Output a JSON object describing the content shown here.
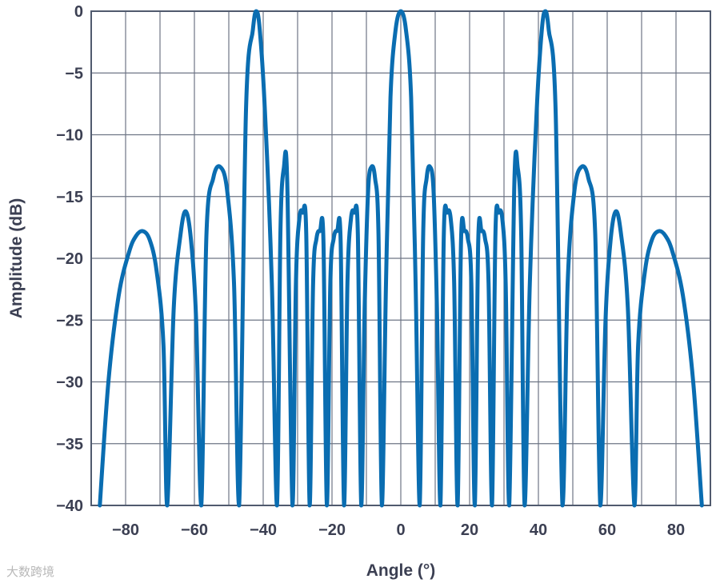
{
  "chart_data": {
    "type": "line",
    "title": "",
    "xlabel": "Angle (°)",
    "ylabel": "Amplitude (dB)",
    "xlim": [
      -90,
      90
    ],
    "ylim": [
      -40,
      0
    ],
    "xticks": [
      -80,
      -60,
      -40,
      -20,
      0,
      20,
      40,
      60,
      80
    ],
    "xtick_labels": [
      "−80",
      "−60",
      "−40",
      "−20",
      "0",
      "20",
      "40",
      "60",
      "80"
    ],
    "yticks": [
      0,
      -5,
      -10,
      -15,
      -20,
      -25,
      -30,
      -35,
      -40
    ],
    "ytick_labels": [
      "0",
      "−5",
      "−10",
      "−15",
      "−20",
      "−25",
      "−30",
      "−35",
      "−40"
    ],
    "grid": true,
    "series": [
      {
        "color": "#0a6db1",
        "x": [
          -87.5,
          -85,
          -82,
          -79,
          -77,
          -75,
          -73,
          -71,
          -69,
          -67.9,
          -66,
          -64,
          -62.5,
          -61,
          -59.5,
          -58,
          -56.5,
          -54.5,
          -52.5,
          -50.5,
          -48.5,
          -47,
          -45,
          -43,
          -42,
          -41,
          -39.5,
          -37.5,
          -36,
          -35,
          -34,
          -33,
          -31.5,
          -30.5,
          -29.5,
          -28.5,
          -27.5,
          -26.5,
          -25.5,
          -24.5,
          -23.5,
          -22.5,
          -21.5,
          -20.5,
          -19.5,
          -18.5,
          -17.5,
          -16.5,
          -15.5,
          -14.5,
          -13.5,
          -12.5,
          -11.5,
          -10.5,
          -9.5,
          -8.5,
          -7.5,
          -6.5,
          -5.5,
          -4.3,
          -3,
          -1.5,
          0,
          1.5,
          3,
          4.3,
          5.5,
          6.5,
          7.5,
          8.5,
          9.5,
          10.5,
          11.5,
          12.5,
          13.5,
          14.5,
          15.5,
          16.5,
          17.5,
          18.5,
          19.5,
          20.5,
          21.5,
          22.5,
          23.5,
          24.5,
          25.5,
          26.5,
          27.5,
          28.5,
          29.5,
          30.5,
          31.5,
          33,
          34,
          35,
          36,
          37.5,
          39.5,
          41,
          42,
          43,
          45,
          47,
          48.5,
          50.5,
          52.5,
          54.5,
          56.5,
          58,
          59.5,
          61,
          62.5,
          64,
          66,
          67.9,
          69,
          71,
          73,
          75,
          77,
          79,
          82,
          85,
          87.5
        ],
        "values": [
          -40,
          -30,
          -23,
          -19.5,
          -18.2,
          -17.8,
          -18.5,
          -21,
          -27,
          -40,
          -24,
          -18,
          -16.2,
          -18.5,
          -25,
          -40,
          -18,
          -13.5,
          -12.6,
          -14.5,
          -22,
          -40,
          -8,
          -1.5,
          0,
          -1.5,
          -8,
          -22,
          -40,
          -18,
          -12.7,
          -14,
          -40,
          -22,
          -16.8,
          -16.3,
          -18,
          -40,
          -22,
          -18.4,
          -17.8,
          -18.6,
          -40,
          -22,
          -18.4,
          -17.8,
          -18.6,
          -40,
          -22,
          -16.8,
          -16.3,
          -18,
          -40,
          -24,
          -14.5,
          -12.6,
          -13.5,
          -18,
          -40,
          -22,
          -7,
          -1.5,
          0,
          -1.5,
          -7,
          -22,
          -40,
          -18,
          -13.5,
          -12.6,
          -14.5,
          -24,
          -40,
          -18,
          -16.3,
          -16.8,
          -22,
          -40,
          -18.6,
          -17.8,
          -18.4,
          -22,
          -40,
          -18.6,
          -17.8,
          -18.4,
          -22,
          -40,
          -18,
          -16.3,
          -16.8,
          -22,
          -40,
          -14,
          -12.7,
          -18,
          -40,
          -22,
          -8,
          -1.5,
          0,
          -1.5,
          -8,
          -40,
          -22,
          -14.5,
          -12.6,
          -13.5,
          -18,
          -40,
          -25,
          -18.5,
          -16.2,
          -18,
          -24,
          -40,
          -27,
          -21,
          -18.5,
          -17.8,
          -18.2,
          -19.5,
          -23,
          -30,
          -40
        ]
      }
    ]
  },
  "watermark": "大数跨境"
}
